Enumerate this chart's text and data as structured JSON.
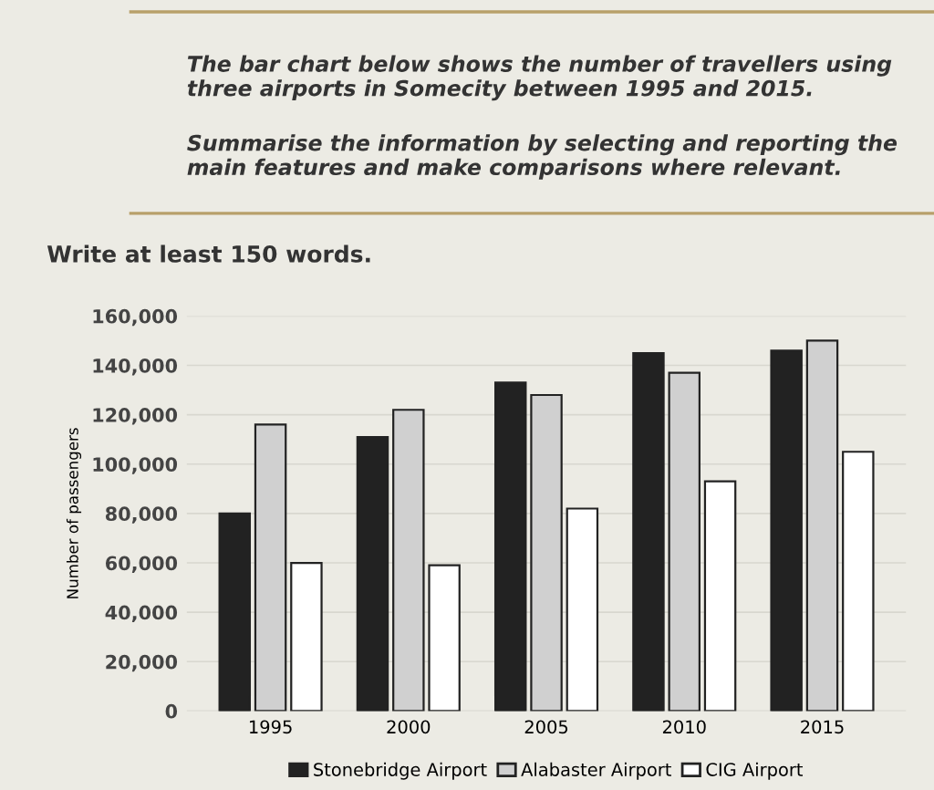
{
  "chart_data": {
    "type": "bar",
    "annotations": [
      "The bar chart below shows the number of travellers using three airports in Somecity between 1995 and 2015.",
      "Summarise the information by selecting and reporting the main features and make comparisons where relevant.",
      "Write at least 150 words."
    ],
    "ylabel": "Number of passengers",
    "categories": [
      "1995",
      "2000",
      "2005",
      "2010",
      "2015"
    ],
    "series": [
      {
        "name": "Stonebridge Airport",
        "color": "#222222",
        "values": [
          80000,
          111000,
          133000,
          145000,
          146000
        ]
      },
      {
        "name": "Alabaster Airport",
        "color": "#d0d0d0",
        "values": [
          116000,
          122000,
          128000,
          137000,
          150000
        ]
      },
      {
        "name": "CIG Airport",
        "color": "#ffffff",
        "values": [
          60000,
          59000,
          82000,
          93000,
          105000
        ]
      }
    ],
    "ylim": [
      0,
      160000
    ],
    "yticks": [
      {
        "value": 0,
        "label": "0"
      },
      {
        "value": 20000,
        "label": "20,000"
      },
      {
        "value": 40000,
        "label": "40,000"
      },
      {
        "value": 60000,
        "label": "60,000"
      },
      {
        "value": 80000,
        "label": "80,000"
      },
      {
        "value": 100000,
        "label": "100,000"
      },
      {
        "value": 120000,
        "label": "120,000"
      },
      {
        "value": 140000,
        "label": "140,000"
      },
      {
        "value": 160000,
        "label": "160,000"
      }
    ],
    "grid": "y",
    "legend": "bottom"
  }
}
